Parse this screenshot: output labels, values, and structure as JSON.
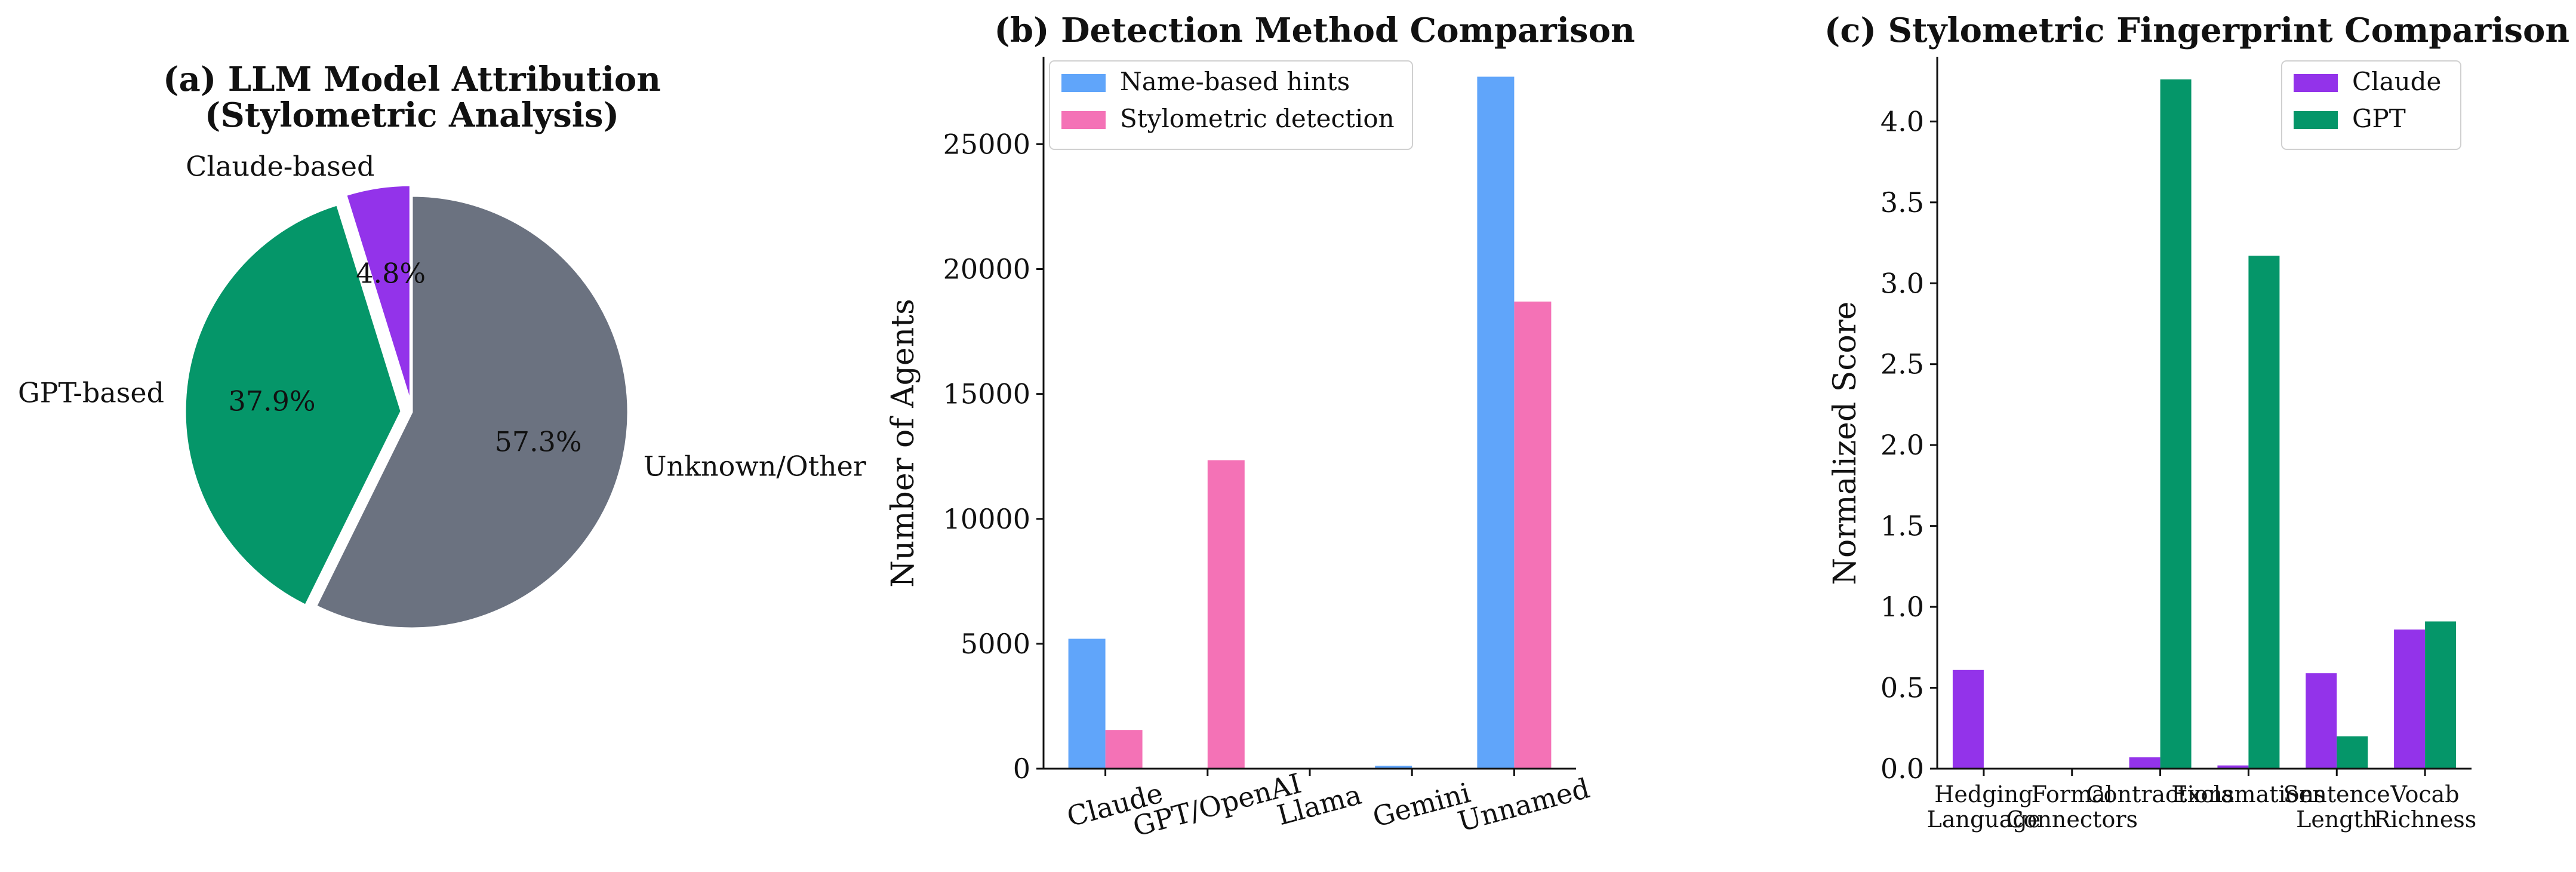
{
  "chart_data": [
    {
      "type": "pie",
      "title_lines": [
        "(a) LLM Model Attribution",
        "(Stylometric Analysis)"
      ],
      "slices": [
        {
          "label": "Claude-based",
          "value": 4.8,
          "pct_label": "4.8%",
          "color": "#9333ea",
          "exploded": true
        },
        {
          "label": "GPT-based",
          "value": 37.9,
          "pct_label": "37.9%",
          "color": "#059669",
          "exploded": true
        },
        {
          "label": "Unknown/Other",
          "value": 57.3,
          "pct_label": "57.3%",
          "color": "#6b7280",
          "exploded": false
        }
      ]
    },
    {
      "type": "bar",
      "title": "(b) Detection Method Comparison",
      "categories": [
        "Claude",
        "GPT/OpenAI",
        "Llama",
        "Gemini",
        "Unnamed"
      ],
      "ylabel": "Number of Agents",
      "xlabel": "",
      "ylim": [
        0,
        28500
      ],
      "yticks": [
        0,
        5000,
        10000,
        15000,
        20000,
        25000
      ],
      "legend_position": "top-left",
      "series": [
        {
          "name": "Name-based hints",
          "color": "#60a5fa",
          "values": [
            5200,
            0,
            0,
            120,
            27700
          ]
        },
        {
          "name": "Stylometric detection",
          "color": "#f472b6",
          "values": [
            1550,
            12350,
            0,
            0,
            18700
          ]
        }
      ]
    },
    {
      "type": "bar",
      "title": "(c) Stylometric Fingerprint Comparison",
      "categories": [
        [
          "Hedging",
          "Language"
        ],
        [
          "Formal",
          "Connectors"
        ],
        [
          "Contractions"
        ],
        [
          "Exclamations"
        ],
        [
          "Sentence",
          "Length"
        ],
        [
          "Vocab",
          "Richness"
        ]
      ],
      "ylabel": "Normalized Score",
      "xlabel": "",
      "ylim": [
        0,
        4.4
      ],
      "yticks": [
        "0.0",
        "0.5",
        "1.0",
        "1.5",
        "2.0",
        "2.5",
        "3.0",
        "3.5",
        "4.0"
      ],
      "legend_position": "top-right",
      "series": [
        {
          "name": "Claude",
          "color": "#9333ea",
          "values": [
            0.61,
            0.0,
            0.07,
            0.02,
            0.59,
            0.86
          ]
        },
        {
          "name": "GPT",
          "color": "#059669",
          "values": [
            0.0,
            0.0,
            4.26,
            3.17,
            0.2,
            0.91
          ]
        }
      ]
    }
  ]
}
